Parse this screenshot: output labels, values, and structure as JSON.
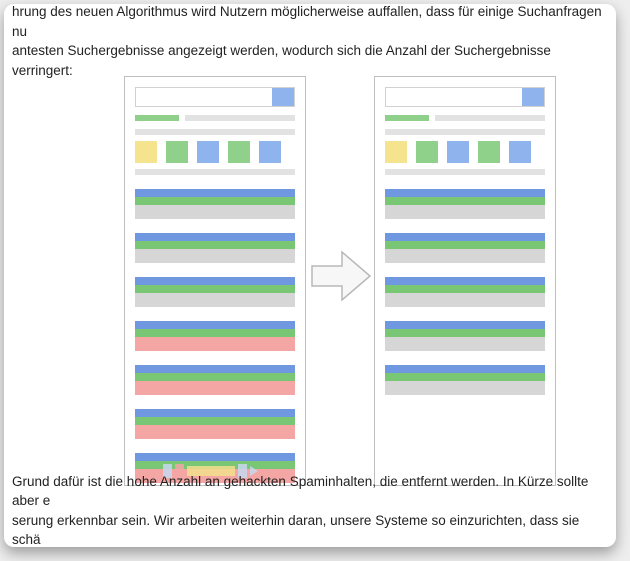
{
  "text": {
    "top": "hrung des neuen Algorithmus wird Nutzern möglicherweise auffallen, dass für einige Suchanfragen nu\nantesten Suchergebnisse angezeigt werden, wodurch sich die Anzahl der Suchergebnisse verringert:",
    "bottom": "Grund dafür ist die hohe Anzahl an gehackten Spaminhalten, die entfernt werden. In Kürze sollte aber e\nserung erkennbar sein. Wir arbeiten weiterhin daran, unsere Systeme so einzurichten, dass sie schä"
  },
  "colors": {
    "blue": "#8fb3ec",
    "blueSolid": "#6f98e0",
    "green": "#8fd08b",
    "greenSolid": "#79c774",
    "gray": "#d6d6d6",
    "grayLine": "#e2e2e2",
    "red": "#f3a6a3",
    "yellow": "#f6e38e",
    "border": "#bfbfbf",
    "arrowFill": "#f7f7f7",
    "arrowStroke": "#b8b8b8",
    "pagerYellow": "#f3df8c",
    "pagerBlue": "#c8d8ef"
  },
  "left": {
    "results": [
      {
        "kind": "good"
      },
      {
        "kind": "good"
      },
      {
        "kind": "good"
      },
      {
        "kind": "bad"
      },
      {
        "kind": "bad"
      },
      {
        "kind": "bad"
      },
      {
        "kind": "bad"
      }
    ],
    "showPager": true
  },
  "right": {
    "results": [
      {
        "kind": "good"
      },
      {
        "kind": "good"
      },
      {
        "kind": "good"
      },
      {
        "kind": "good"
      },
      {
        "kind": "good"
      }
    ],
    "showPager": false
  },
  "result_styles": {
    "good": {
      "l1": "blueSolid",
      "l2": "greenSolid",
      "l3": "gray"
    },
    "bad": {
      "l1": "blueSolid",
      "l2": "greenSolid",
      "l3": "red"
    }
  },
  "swatches": [
    "yellow",
    "green",
    "blue",
    "green",
    "blue"
  ]
}
